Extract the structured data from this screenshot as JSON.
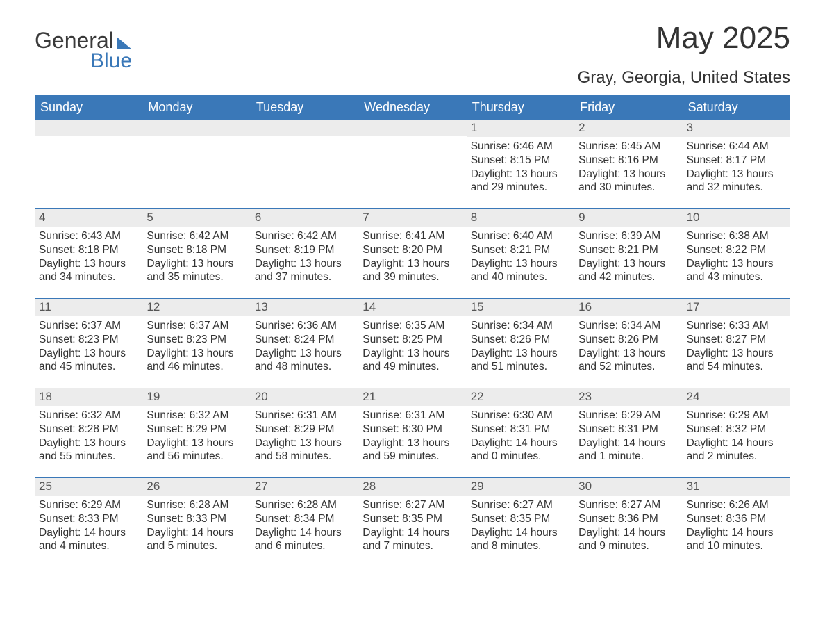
{
  "logo": {
    "text1": "General",
    "text2": "Blue"
  },
  "title": "May 2025",
  "location": "Gray, Georgia, United States",
  "colors": {
    "accent": "#3a78b8",
    "header_bg": "#3a78b8",
    "header_text": "#ffffff",
    "daynum_bg": "#ececec",
    "text": "#333333",
    "muted": "#555555",
    "page_bg": "#ffffff"
  },
  "typography": {
    "month_title_fontsize": 44,
    "location_fontsize": 24,
    "dow_fontsize": 18,
    "daynum_fontsize": 17,
    "body_fontsize": 15.5
  },
  "dow": [
    "Sunday",
    "Monday",
    "Tuesday",
    "Wednesday",
    "Thursday",
    "Friday",
    "Saturday"
  ],
  "weeks": [
    [
      null,
      null,
      null,
      null,
      {
        "n": "1",
        "sunrise": "6:46 AM",
        "sunset": "8:15 PM",
        "daylight": "13 hours and 29 minutes."
      },
      {
        "n": "2",
        "sunrise": "6:45 AM",
        "sunset": "8:16 PM",
        "daylight": "13 hours and 30 minutes."
      },
      {
        "n": "3",
        "sunrise": "6:44 AM",
        "sunset": "8:17 PM",
        "daylight": "13 hours and 32 minutes."
      }
    ],
    [
      {
        "n": "4",
        "sunrise": "6:43 AM",
        "sunset": "8:18 PM",
        "daylight": "13 hours and 34 minutes."
      },
      {
        "n": "5",
        "sunrise": "6:42 AM",
        "sunset": "8:18 PM",
        "daylight": "13 hours and 35 minutes."
      },
      {
        "n": "6",
        "sunrise": "6:42 AM",
        "sunset": "8:19 PM",
        "daylight": "13 hours and 37 minutes."
      },
      {
        "n": "7",
        "sunrise": "6:41 AM",
        "sunset": "8:20 PM",
        "daylight": "13 hours and 39 minutes."
      },
      {
        "n": "8",
        "sunrise": "6:40 AM",
        "sunset": "8:21 PM",
        "daylight": "13 hours and 40 minutes."
      },
      {
        "n": "9",
        "sunrise": "6:39 AM",
        "sunset": "8:21 PM",
        "daylight": "13 hours and 42 minutes."
      },
      {
        "n": "10",
        "sunrise": "6:38 AM",
        "sunset": "8:22 PM",
        "daylight": "13 hours and 43 minutes."
      }
    ],
    [
      {
        "n": "11",
        "sunrise": "6:37 AM",
        "sunset": "8:23 PM",
        "daylight": "13 hours and 45 minutes."
      },
      {
        "n": "12",
        "sunrise": "6:37 AM",
        "sunset": "8:23 PM",
        "daylight": "13 hours and 46 minutes."
      },
      {
        "n": "13",
        "sunrise": "6:36 AM",
        "sunset": "8:24 PM",
        "daylight": "13 hours and 48 minutes."
      },
      {
        "n": "14",
        "sunrise": "6:35 AM",
        "sunset": "8:25 PM",
        "daylight": "13 hours and 49 minutes."
      },
      {
        "n": "15",
        "sunrise": "6:34 AM",
        "sunset": "8:26 PM",
        "daylight": "13 hours and 51 minutes."
      },
      {
        "n": "16",
        "sunrise": "6:34 AM",
        "sunset": "8:26 PM",
        "daylight": "13 hours and 52 minutes."
      },
      {
        "n": "17",
        "sunrise": "6:33 AM",
        "sunset": "8:27 PM",
        "daylight": "13 hours and 54 minutes."
      }
    ],
    [
      {
        "n": "18",
        "sunrise": "6:32 AM",
        "sunset": "8:28 PM",
        "daylight": "13 hours and 55 minutes."
      },
      {
        "n": "19",
        "sunrise": "6:32 AM",
        "sunset": "8:29 PM",
        "daylight": "13 hours and 56 minutes."
      },
      {
        "n": "20",
        "sunrise": "6:31 AM",
        "sunset": "8:29 PM",
        "daylight": "13 hours and 58 minutes."
      },
      {
        "n": "21",
        "sunrise": "6:31 AM",
        "sunset": "8:30 PM",
        "daylight": "13 hours and 59 minutes."
      },
      {
        "n": "22",
        "sunrise": "6:30 AM",
        "sunset": "8:31 PM",
        "daylight": "14 hours and 0 minutes."
      },
      {
        "n": "23",
        "sunrise": "6:29 AM",
        "sunset": "8:31 PM",
        "daylight": "14 hours and 1 minute."
      },
      {
        "n": "24",
        "sunrise": "6:29 AM",
        "sunset": "8:32 PM",
        "daylight": "14 hours and 2 minutes."
      }
    ],
    [
      {
        "n": "25",
        "sunrise": "6:29 AM",
        "sunset": "8:33 PM",
        "daylight": "14 hours and 4 minutes."
      },
      {
        "n": "26",
        "sunrise": "6:28 AM",
        "sunset": "8:33 PM",
        "daylight": "14 hours and 5 minutes."
      },
      {
        "n": "27",
        "sunrise": "6:28 AM",
        "sunset": "8:34 PM",
        "daylight": "14 hours and 6 minutes."
      },
      {
        "n": "28",
        "sunrise": "6:27 AM",
        "sunset": "8:35 PM",
        "daylight": "14 hours and 7 minutes."
      },
      {
        "n": "29",
        "sunrise": "6:27 AM",
        "sunset": "8:35 PM",
        "daylight": "14 hours and 8 minutes."
      },
      {
        "n": "30",
        "sunrise": "6:27 AM",
        "sunset": "8:36 PM",
        "daylight": "14 hours and 9 minutes."
      },
      {
        "n": "31",
        "sunrise": "6:26 AM",
        "sunset": "8:36 PM",
        "daylight": "14 hours and 10 minutes."
      }
    ]
  ],
  "labels": {
    "sunrise": "Sunrise: ",
    "sunset": "Sunset: ",
    "daylight": "Daylight: "
  }
}
